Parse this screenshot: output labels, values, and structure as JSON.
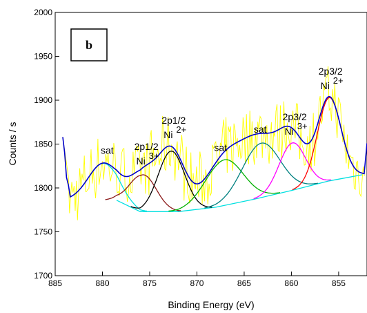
{
  "chart_data": {
    "type": "line",
    "panel_label": "b",
    "xlabel": "Binding Energy (eV)",
    "ylabel": "Counts / s",
    "xlim": [
      885,
      852
    ],
    "ylim": [
      1700,
      2000
    ],
    "x_reversed": true,
    "x_ticks": [
      885,
      880,
      875,
      870,
      865,
      860,
      855
    ],
    "y_ticks": [
      1700,
      1750,
      1800,
      1850,
      1900,
      1950,
      2000
    ],
    "grid": false,
    "annotations": [
      {
        "id": "sat1",
        "lines": [
          "sat"
        ],
        "x": 879.5,
        "y": 1825
      },
      {
        "id": "ni3_2p12",
        "lines": [
          "2p1/2",
          "Ni",
          "3+"
        ],
        "x": 875.5,
        "y": 1818
      },
      {
        "id": "ni2_2p12",
        "lines": [
          "2p1/2",
          "Ni",
          "2+"
        ],
        "x": 872.6,
        "y": 1848
      },
      {
        "id": "sat2",
        "lines": [
          "sat"
        ],
        "x": 867.5,
        "y": 1828
      },
      {
        "id": "sat3",
        "lines": [
          "sat"
        ],
        "x": 863.3,
        "y": 1849
      },
      {
        "id": "ni3_2p32",
        "lines": [
          "2p3/2",
          "Ni",
          "3+"
        ],
        "x": 859.8,
        "y": 1852
      },
      {
        "id": "ni2_2p32",
        "lines": [
          "2p3/2",
          "Ni",
          "2+"
        ],
        "x": 856,
        "y": 1904
      }
    ],
    "baseline": {
      "color": "#00e0e0",
      "x": [
        878.5,
        876,
        872,
        868,
        864,
        860,
        856,
        852.5
      ],
      "y": [
        1786,
        1773,
        1773,
        1778,
        1787,
        1797,
        1808,
        1815
      ]
    },
    "components": [
      {
        "color": "#00e0e0",
        "center": 879.9,
        "height": 42,
        "width": 1.6
      },
      {
        "color": "#8b1a1a",
        "center": 875.7,
        "height": 42,
        "width": 1.4
      },
      {
        "color": "#000000",
        "center": 872.7,
        "height": 69,
        "width": 1.4
      },
      {
        "color": "#00b000",
        "center": 867.1,
        "height": 52,
        "width": 2.0
      },
      {
        "color": "#008080",
        "center": 863.2,
        "height": 62,
        "width": 2.0
      },
      {
        "color": "#ff00ff",
        "center": 859.9,
        "height": 54,
        "width": 1.4
      },
      {
        "color": "#ff0000",
        "center": 856.0,
        "height": 95,
        "width": 1.25
      }
    ],
    "envelope_color": "#0000cc",
    "raw_color": "#ffff00",
    "raw_start_x": 884.2,
    "raw_start_y": 1858
  }
}
